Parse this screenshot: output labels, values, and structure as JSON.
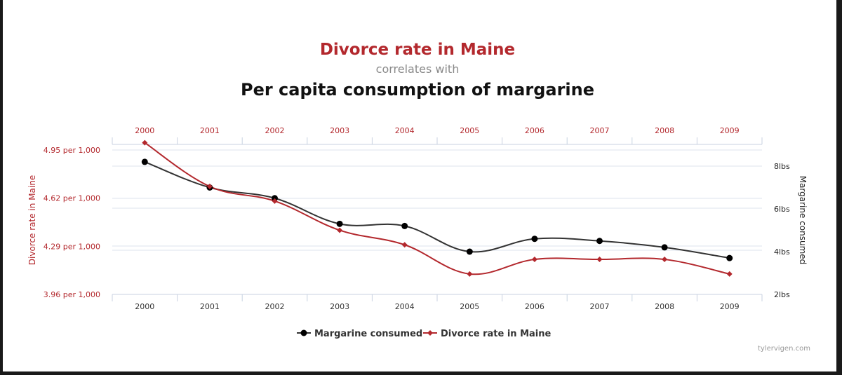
{
  "header": {
    "title": "Divorce rate in Maine",
    "subtitle": "correlates with",
    "title2": "Per capita consumption of margarine"
  },
  "watermark": "tylervigen.com",
  "colors": {
    "divorce": "#b3282d",
    "margarine": "#333333",
    "grid": "#dde3ec"
  },
  "chart_data": {
    "type": "line",
    "x": [
      "2000",
      "2001",
      "2002",
      "2003",
      "2004",
      "2005",
      "2006",
      "2007",
      "2008",
      "2009"
    ],
    "grid": true,
    "legend_position": "bottom-center",
    "left_axis": {
      "label": "Divorce rate in Maine",
      "ticks": [
        "4.95 per 1,000",
        "4.62 per 1,000",
        "4.29 per 1,000",
        "3.96 per 1,000"
      ],
      "tick_values": [
        4.95,
        4.62,
        4.29,
        3.96
      ],
      "range": [
        3.96,
        4.95
      ]
    },
    "right_axis": {
      "label": "Margarine consumed",
      "ticks": [
        "8lbs",
        "6lbs",
        "4lbs",
        "2lbs"
      ],
      "tick_values": [
        8,
        6,
        4,
        2
      ],
      "range": [
        2,
        8.6
      ]
    },
    "series": [
      {
        "name": "Margarine consumed",
        "axis": "right",
        "values": [
          8.2,
          7.0,
          6.5,
          5.3,
          5.2,
          4.0,
          4.6,
          4.5,
          4.2,
          3.7
        ]
      },
      {
        "name": "Divorce rate in Maine",
        "axis": "left",
        "values": [
          5.0,
          4.7,
          4.6,
          4.4,
          4.3,
          4.1,
          4.2,
          4.2,
          4.2,
          4.1
        ]
      }
    ]
  }
}
